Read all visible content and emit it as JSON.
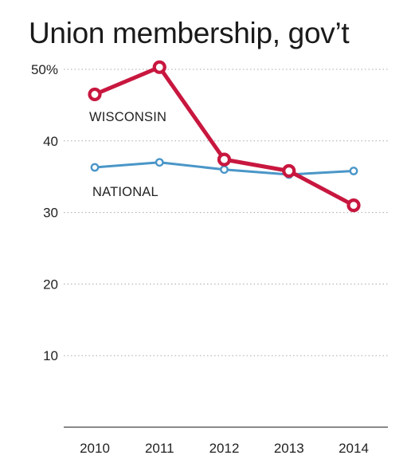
{
  "chart_data": {
    "type": "line",
    "title": "Union membership, gov’t",
    "xlabel": "",
    "ylabel": "",
    "categories": [
      "2010",
      "2011",
      "2012",
      "2013",
      "2014"
    ],
    "ylim": [
      0,
      50
    ],
    "yticks": [
      {
        "value": 10,
        "label": "10"
      },
      {
        "value": 20,
        "label": "20"
      },
      {
        "value": 30,
        "label": "30"
      },
      {
        "value": 40,
        "label": "40"
      },
      {
        "value": 50,
        "label": "50%"
      }
    ],
    "grid": true,
    "series": [
      {
        "name": "WISCONSIN",
        "color": "#c8173f",
        "values": [
          46.5,
          50.3,
          37.4,
          35.8,
          31.0
        ]
      },
      {
        "name": "NATIONAL",
        "color": "#4a96c8",
        "values": [
          36.3,
          37.0,
          36.0,
          35.3,
          35.8
        ]
      }
    ]
  }
}
